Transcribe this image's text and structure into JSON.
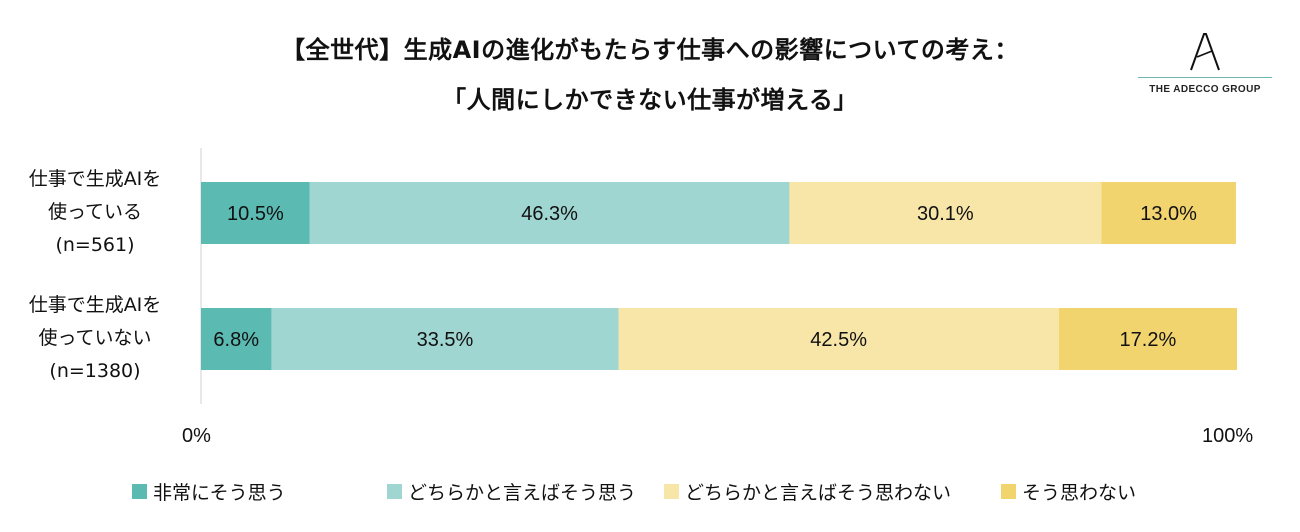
{
  "title_line1": "【全世代】生成AIの進化がもたらす仕事への影響についての考え：",
  "title_line2": "「人間にしかできない仕事が増える」",
  "logo": {
    "text": "THE ADECCO GROUP",
    "icon": "adecco-a-logo-icon"
  },
  "colors": {
    "strongly_agree": "#5bbab2",
    "somewhat_agree": "#a0d6d1",
    "somewhat_disagree": "#f8e6a9",
    "disagree": "#f2d46f",
    "axis": "#d0d0d0"
  },
  "chart_data": {
    "type": "bar",
    "orientation": "horizontal",
    "stacked": true,
    "xlim": [
      0,
      100
    ],
    "x_ticks": [
      "0%",
      "100%"
    ],
    "categories": [
      [
        "仕事で生成AIを",
        "使っている",
        "(n=561)"
      ],
      [
        "仕事で生成AIを",
        "使っていない",
        "(n=1380)"
      ]
    ],
    "series": [
      {
        "name": "非常にそう思う",
        "values": [
          10.5,
          6.8
        ],
        "labels": [
          "10.5%",
          "6.8%"
        ]
      },
      {
        "name": "どちらかと言えばそう思う",
        "values": [
          46.3,
          33.5
        ],
        "labels": [
          "46.3%",
          "33.5%"
        ]
      },
      {
        "name": "どちらかと言えばそう思わない",
        "values": [
          30.1,
          42.5
        ],
        "labels": [
          "30.1%",
          "42.5%"
        ]
      },
      {
        "name": "そう思わない",
        "values": [
          13.0,
          17.2
        ],
        "labels": [
          "13.0%",
          "17.2%"
        ]
      }
    ],
    "legend_position": "bottom"
  }
}
